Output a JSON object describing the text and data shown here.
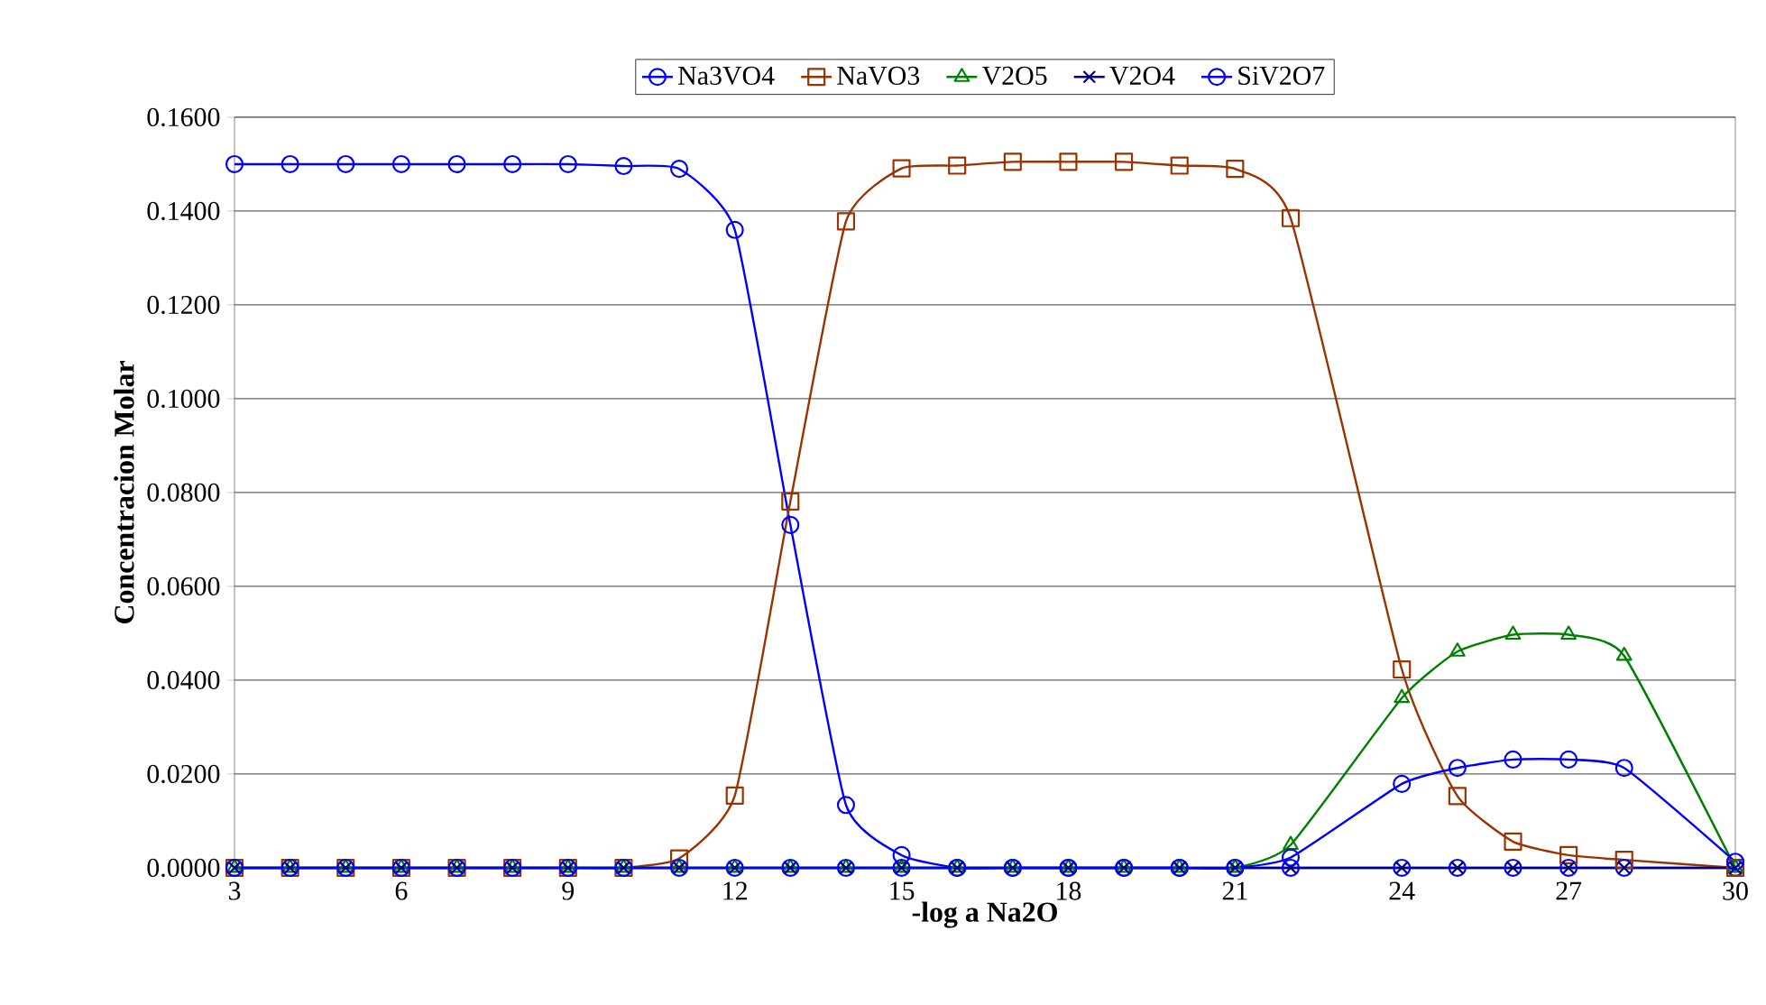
{
  "chart_data": {
    "type": "line",
    "xlabel": "-log a Na2O",
    "ylabel": "Concentracion Molar",
    "x": [
      3,
      4,
      5,
      6,
      7,
      8,
      9,
      10,
      11,
      12,
      13,
      14,
      15,
      16,
      17,
      18,
      19,
      20,
      21,
      22,
      24,
      25,
      26,
      27,
      28,
      30
    ],
    "series": [
      {
        "name": "Na3VO4",
        "color": "#0000ff",
        "marker": "circle",
        "values": [
          0.15,
          0.15,
          0.15,
          0.15,
          0.15,
          0.15,
          0.15,
          0.1496,
          0.149,
          0.136,
          0.0731,
          0.0134,
          0.0027,
          0,
          0,
          0,
          0,
          0,
          0,
          0,
          0,
          0,
          0,
          0,
          0,
          0
        ]
      },
      {
        "name": "NaVO3",
        "color": "#993300",
        "marker": "square",
        "values": [
          0,
          0,
          0,
          0,
          0,
          0,
          0,
          0,
          0.002,
          0.0154,
          0.0781,
          0.1378,
          0.1491,
          0.1497,
          0.1505,
          0.1505,
          0.1505,
          0.1497,
          0.149,
          0.1385,
          0.0423,
          0.0153,
          0.0056,
          0.0027,
          0.0017,
          0
        ]
      },
      {
        "name": "V2O5",
        "color": "#008000",
        "marker": "triangle",
        "values": [
          0,
          0,
          0,
          0,
          0,
          0,
          0,
          0,
          0,
          0,
          0,
          0,
          0,
          0,
          0,
          0,
          0,
          0,
          0,
          0.0049,
          0.0362,
          0.0461,
          0.0497,
          0.0497,
          0.0452,
          0
        ]
      },
      {
        "name": "V2O4",
        "color": "#000080",
        "marker": "cross",
        "values": [
          0,
          0,
          0,
          0,
          0,
          0,
          0,
          0,
          0,
          0,
          0,
          0,
          0,
          0,
          0,
          0,
          0,
          0,
          0,
          0,
          0,
          0,
          0,
          0,
          0,
          0
        ]
      },
      {
        "name": "SiV2O7",
        "color": "#0000ff",
        "marker": "circle",
        "values": [
          0,
          0,
          0,
          0,
          0,
          0,
          0,
          0,
          0,
          0,
          0,
          0,
          0,
          0,
          0,
          0,
          0,
          0,
          0,
          0.0022,
          0.0179,
          0.0213,
          0.0231,
          0.0231,
          0.0213,
          0.0013
        ]
      }
    ],
    "xlim": [
      3,
      30
    ],
    "xticks": [
      3,
      6,
      9,
      12,
      15,
      18,
      21,
      24,
      27,
      30
    ],
    "ylim": [
      0,
      0.16
    ],
    "yticks": [
      {
        "value": 0,
        "label": "0.0000"
      },
      {
        "value": 0.02,
        "label": "0.0200"
      },
      {
        "value": 0.04,
        "label": "0.0400"
      },
      {
        "value": 0.06,
        "label": "0.0600"
      },
      {
        "value": 0.08,
        "label": "0.0800"
      },
      {
        "value": 0.1,
        "label": "0.1000"
      },
      {
        "value": 0.12,
        "label": "0.1200"
      },
      {
        "value": 0.14,
        "label": "0.1400"
      },
      {
        "value": 0.16,
        "label": "0.1600"
      }
    ],
    "grid": "y",
    "legend": "top"
  }
}
